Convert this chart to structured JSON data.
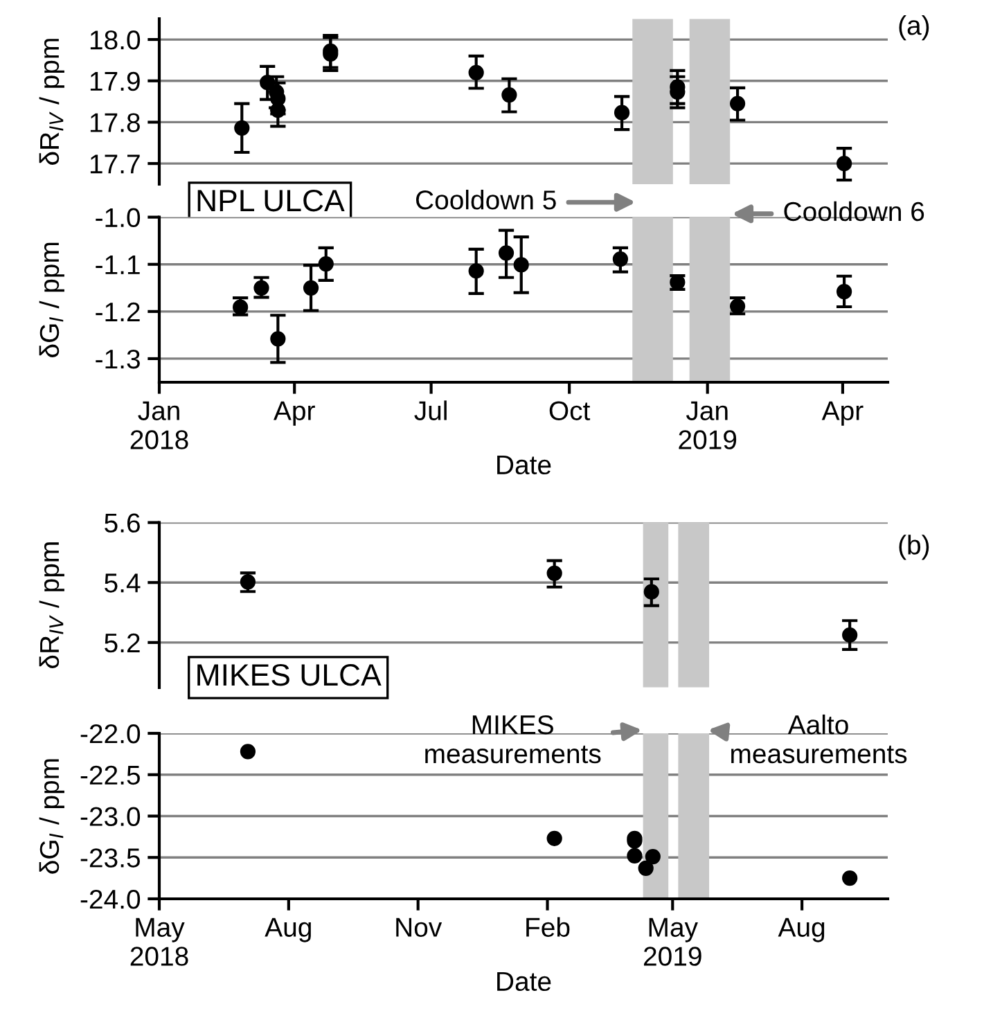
{
  "chart_data": [
    {
      "type": "scatter",
      "title": "(a)",
      "ylabel": "δR$_{IV}$ / ppm",
      "annotations": [
        "NPL ULCA"
      ],
      "xlim": [
        "2018-01-01",
        "2019-05-01"
      ],
      "ylim": [
        17.65,
        18.05
      ],
      "yticks": [
        17.7,
        17.8,
        17.9,
        {
          "value": 18.0,
          "label": "18.0"
        }
      ],
      "tick_labels": "y",
      "grid": "y",
      "marker": "circle",
      "series": [
        {
          "color": "#000000",
          "x": [
            "2018-02-25",
            "2018-03-14",
            "2018-03-20",
            "2018-03-21",
            "2018-03-21",
            "2018-04-25",
            "2018-04-25",
            "2018-07-31",
            "2018-08-22",
            "2018-11-05",
            "2018-12-12",
            "2018-12-12",
            "2019-01-21",
            "2019-04-02"
          ],
          "values": [
            17.786,
            17.896,
            17.873,
            17.857,
            17.829,
            17.965,
            17.972,
            17.92,
            17.866,
            17.823,
            17.885,
            17.873,
            17.845,
            17.7
          ],
          "errors": [
            [
              17.727,
              17.845
            ],
            [
              17.855,
              17.935
            ],
            [
              17.835,
              17.91
            ],
            [
              17.82,
              17.895
            ],
            [
              17.79,
              17.829
            ],
            [
              17.925,
              18.005
            ],
            [
              17.932,
              18.01
            ],
            [
              17.882,
              17.96
            ],
            [
              17.825,
              17.905
            ],
            [
              17.782,
              17.862
            ],
            [
              17.845,
              17.925
            ],
            [
              17.835,
              17.91
            ],
            [
              17.805,
              17.883
            ],
            [
              17.66,
              17.737
            ]
          ]
        }
      ],
      "bands": [
        {
          "axis": "x",
          "from": "2018-11-12",
          "to": "2018-12-09",
          "color": "#c8c8c8"
        },
        {
          "axis": "x",
          "from": "2018-12-20",
          "to": "2019-01-16",
          "color": "#c8c8c8"
        }
      ]
    },
    {
      "type": "scatter",
      "xlabel": "Date",
      "ylabel": "δG$_{I}$ / ppm",
      "annotations": [
        "Cooldown 5",
        "Cooldown 6"
      ],
      "xlim": [
        "2018-01-01",
        "2019-05-01"
      ],
      "xticks": [
        {
          "value": "2018-01-01",
          "label": "Jan\n2018"
        },
        {
          "value": "2018-04-01",
          "label": "Apr"
        },
        {
          "value": "2018-07-01",
          "label": "Jul"
        },
        {
          "value": "2018-10-01",
          "label": "Oct"
        },
        {
          "value": "2019-01-01",
          "label": "Jan\n2019"
        },
        {
          "value": "2019-04-01",
          "label": "Apr"
        }
      ],
      "ylim": [
        -1.35,
        -1.0
      ],
      "yticks": [
        -1.3,
        -1.2,
        -1.1,
        {
          "value": -1.0,
          "label": "-1.0"
        }
      ],
      "grid": "y",
      "marker": "circle",
      "series": [
        {
          "color": "#000000",
          "x": [
            "2018-02-24",
            "2018-03-10",
            "2018-03-21",
            "2018-04-12",
            "2018-04-22",
            "2018-07-31",
            "2018-08-20",
            "2018-08-30",
            "2018-11-04",
            "2018-12-12",
            "2019-01-21",
            "2019-04-02"
          ],
          "values": [
            -1.191,
            -1.15,
            -1.258,
            -1.15,
            -1.099,
            -1.114,
            -1.076,
            -1.101,
            -1.089,
            -1.138,
            -1.189,
            -1.158
          ],
          "errors": [
            [
              -1.207,
              -1.171
            ],
            [
              -1.17,
              -1.128
            ],
            [
              -1.308,
              -1.208
            ],
            [
              -1.198,
              -1.102
            ],
            [
              -1.134,
              -1.065
            ],
            [
              -1.162,
              -1.068
            ],
            [
              -1.128,
              -1.028
            ],
            [
              -1.16,
              -1.042
            ],
            [
              -1.116,
              -1.065
            ],
            [
              -1.153,
              -1.124
            ],
            [
              -1.205,
              -1.171
            ],
            [
              -1.19,
              -1.125
            ]
          ]
        }
      ],
      "bands": [
        {
          "axis": "x",
          "from": "2018-11-12",
          "to": "2018-12-09",
          "color": "#c8c8c8"
        },
        {
          "axis": "x",
          "from": "2018-12-20",
          "to": "2019-01-16",
          "color": "#c8c8c8"
        }
      ]
    },
    {
      "type": "scatter",
      "title": "(b)",
      "ylabel": "δR$_{IV}$ / ppm",
      "annotations": [
        "MIKES ULCA"
      ],
      "xlim": [
        "2018-05-01",
        "2019-10-01"
      ],
      "ylim": [
        5.05,
        5.6
      ],
      "yticks": [
        5.2,
        5.4,
        5.6
      ],
      "tick_labels": "y",
      "grid": "y",
      "marker": "circle",
      "series": [
        {
          "color": "#000000",
          "x": [
            "2018-07-03",
            "2019-02-06",
            "2019-04-16",
            "2019-09-04"
          ],
          "values": [
            5.402,
            5.431,
            5.369,
            5.225
          ],
          "errors": [
            [
              5.37,
              5.432
            ],
            [
              5.385,
              5.473
            ],
            [
              5.323,
              5.412
            ],
            [
              5.177,
              5.273
            ]
          ]
        }
      ],
      "bands": [
        {
          "axis": "x",
          "from": "2019-04-10",
          "to": "2019-04-28",
          "color": "#c8c8c8"
        },
        {
          "axis": "x",
          "from": "2019-05-05",
          "to": "2019-05-27",
          "color": "#c8c8c8"
        }
      ]
    },
    {
      "type": "scatter",
      "xlabel": "Date",
      "ylabel": "δG$_{I}$ / ppm",
      "annotations": [
        "MIKES\nmeasurements",
        "Aalto\nmeasurements"
      ],
      "xlim": [
        "2018-05-01",
        "2019-10-01"
      ],
      "xticks": [
        {
          "value": "2018-05-01",
          "label": "May\n2018"
        },
        {
          "value": "2018-08-01",
          "label": "Aug"
        },
        {
          "value": "2018-11-01",
          "label": "Nov"
        },
        {
          "value": "2019-02-01",
          "label": "Feb"
        },
        {
          "value": "2019-05-01",
          "label": "May\n2019"
        },
        {
          "value": "2019-08-01",
          "label": "Aug"
        }
      ],
      "ylim": [
        -24.0,
        -22.0
      ],
      "yticks": [
        {
          "value": -24.0,
          "label": "-24.0"
        },
        -23.5,
        {
          "value": -23.0,
          "label": "-23.0"
        },
        -22.5,
        {
          "value": -22.0,
          "label": "-22.0"
        }
      ],
      "grid": "y",
      "marker": "circle",
      "series": [
        {
          "color": "#000000",
          "x": [
            "2018-07-03",
            "2019-02-06",
            "2019-04-04",
            "2019-04-04",
            "2019-04-04",
            "2019-04-12",
            "2019-04-17",
            "2019-09-04"
          ],
          "values": [
            -22.22,
            -23.27,
            -23.27,
            -23.3,
            -23.48,
            -23.63,
            -23.49,
            -23.75
          ]
        }
      ],
      "bands": [
        {
          "axis": "x",
          "from": "2019-04-10",
          "to": "2019-04-28",
          "color": "#c8c8c8"
        },
        {
          "axis": "x",
          "from": "2019-05-05",
          "to": "2019-05-27",
          "color": "#c8c8c8"
        }
      ]
    }
  ]
}
